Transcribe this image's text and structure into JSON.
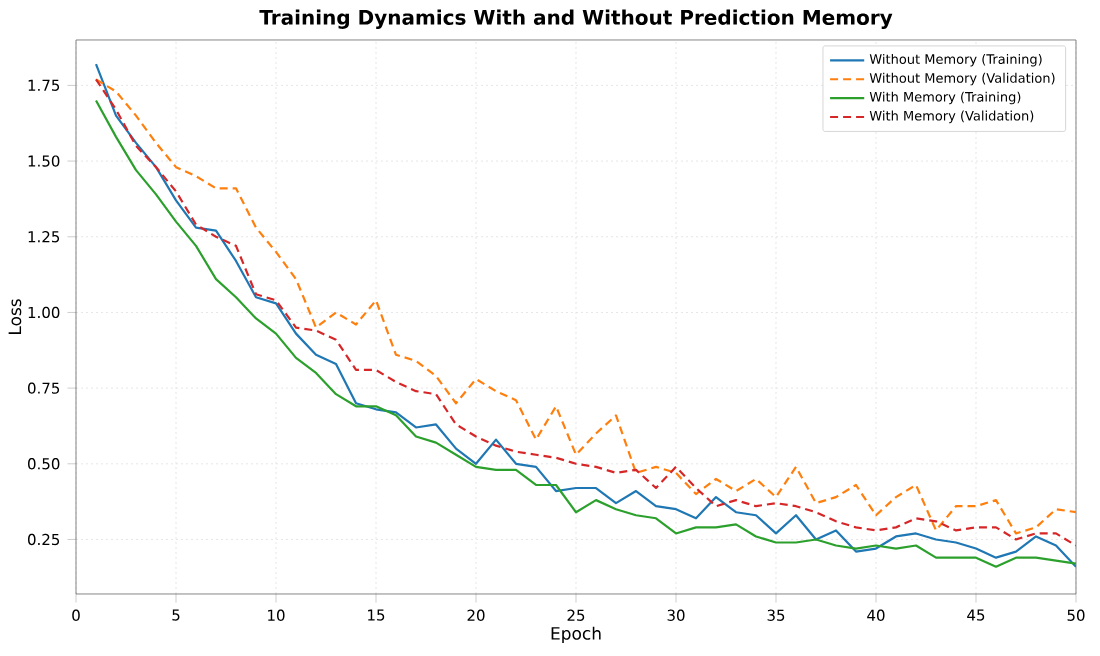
{
  "chart_data": {
    "type": "line",
    "title": "**Training Dynamics With and Without Prediction Memory**",
    "xlabel": "Epoch",
    "ylabel": "Loss",
    "x": [
      1,
      2,
      3,
      4,
      5,
      6,
      7,
      8,
      9,
      10,
      11,
      12,
      13,
      14,
      15,
      16,
      17,
      18,
      19,
      20,
      21,
      22,
      23,
      24,
      25,
      26,
      27,
      28,
      29,
      30,
      31,
      32,
      33,
      34,
      35,
      36,
      37,
      38,
      39,
      40,
      41,
      42,
      43,
      44,
      45,
      46,
      47,
      48,
      49,
      50
    ],
    "xlim": [
      0,
      50
    ],
    "xticks": [
      0,
      5,
      10,
      15,
      20,
      25,
      30,
      35,
      40,
      45,
      50
    ],
    "ylim": [
      0.07,
      1.9
    ],
    "yticks": [
      {
        "value": 0.25,
        "label": "0.25"
      },
      {
        "value": 0.5,
        "label": "0.50"
      },
      {
        "value": 0.75,
        "label": "0.75"
      },
      {
        "value": 1.0,
        "label": "1.00"
      },
      {
        "value": 1.25,
        "label": "1.25"
      },
      {
        "value": 1.5,
        "label": "1.50"
      },
      {
        "value": 1.75,
        "label": "1.75"
      }
    ],
    "grid": true,
    "legend": "top right",
    "marker": "none",
    "series": [
      {
        "name": "Without Memory (Training)",
        "color": "#1f77b4",
        "line_style": "solid",
        "values": [
          1.82,
          1.65,
          1.56,
          1.48,
          1.37,
          1.28,
          1.27,
          1.17,
          1.05,
          1.03,
          0.93,
          0.86,
          0.83,
          0.7,
          0.68,
          0.67,
          0.62,
          0.63,
          0.55,
          0.5,
          0.58,
          0.5,
          0.49,
          0.41,
          0.42,
          0.42,
          0.37,
          0.41,
          0.36,
          0.35,
          0.32,
          0.39,
          0.34,
          0.33,
          0.27,
          0.33,
          0.25,
          0.28,
          0.21,
          0.22,
          0.26,
          0.27,
          0.25,
          0.24,
          0.22,
          0.19,
          0.21,
          0.26,
          0.23,
          0.16
        ]
      },
      {
        "name": "Without Memory (Validation)",
        "color": "#ff7f0e",
        "line_style": "dashed",
        "values": [
          1.77,
          1.73,
          1.65,
          1.56,
          1.48,
          1.45,
          1.41,
          1.41,
          1.28,
          1.2,
          1.11,
          0.95,
          1.0,
          0.96,
          1.04,
          0.86,
          0.84,
          0.79,
          0.7,
          0.78,
          0.74,
          0.71,
          0.58,
          0.69,
          0.53,
          0.6,
          0.66,
          0.47,
          0.49,
          0.47,
          0.4,
          0.45,
          0.41,
          0.45,
          0.39,
          0.49,
          0.37,
          0.39,
          0.43,
          0.33,
          0.39,
          0.43,
          0.28,
          0.36,
          0.36,
          0.38,
          0.27,
          0.29,
          0.35,
          0.34
        ]
      },
      {
        "name": "With Memory (Training)",
        "color": "#2ca02c",
        "line_style": "solid",
        "values": [
          1.7,
          1.58,
          1.47,
          1.39,
          1.3,
          1.22,
          1.11,
          1.05,
          0.98,
          0.93,
          0.85,
          0.8,
          0.73,
          0.69,
          0.69,
          0.66,
          0.59,
          0.57,
          0.53,
          0.49,
          0.48,
          0.48,
          0.43,
          0.43,
          0.34,
          0.38,
          0.35,
          0.33,
          0.32,
          0.27,
          0.29,
          0.29,
          0.3,
          0.26,
          0.24,
          0.24,
          0.25,
          0.23,
          0.22,
          0.23,
          0.22,
          0.23,
          0.19,
          0.19,
          0.19,
          0.16,
          0.19,
          0.19,
          0.18,
          0.17
        ]
      },
      {
        "name": "With Memory (Validation)",
        "color": "#d62728",
        "line_style": "dashed",
        "values": [
          1.77,
          1.67,
          1.55,
          1.48,
          1.4,
          1.29,
          1.25,
          1.22,
          1.06,
          1.04,
          0.95,
          0.94,
          0.91,
          0.81,
          0.81,
          0.77,
          0.74,
          0.73,
          0.63,
          0.59,
          0.56,
          0.54,
          0.53,
          0.52,
          0.5,
          0.49,
          0.47,
          0.48,
          0.42,
          0.49,
          0.42,
          0.36,
          0.38,
          0.36,
          0.37,
          0.36,
          0.34,
          0.31,
          0.29,
          0.28,
          0.29,
          0.32,
          0.31,
          0.28,
          0.29,
          0.29,
          0.25,
          0.27,
          0.27,
          0.23
        ]
      }
    ]
  }
}
